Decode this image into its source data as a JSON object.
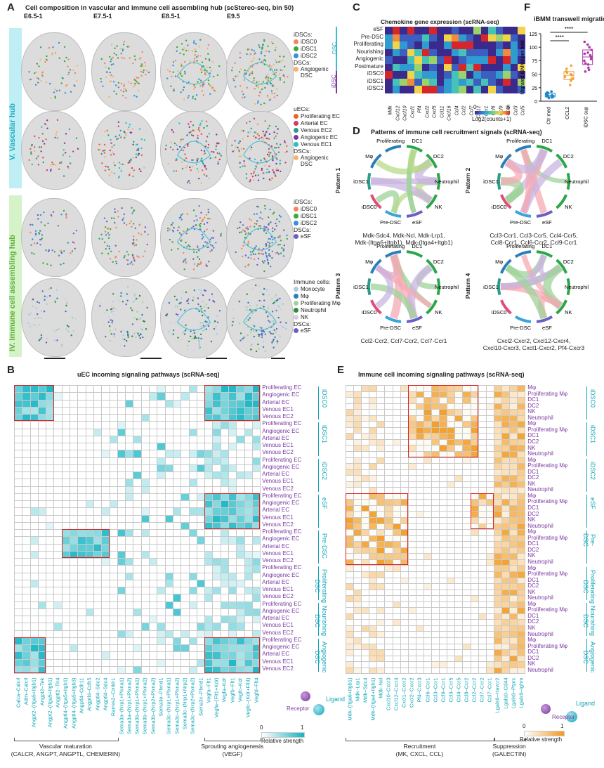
{
  "panelA": {
    "letter": "A",
    "title": "Cell composition in vascular and immune cell assembling hub (scStereo-seq, bin 50)",
    "stages": [
      "E6.5-1",
      "E7.5-1",
      "E8.5-1",
      "E9.5"
    ],
    "stage_colors": [
      "#e4573a",
      "#f08a78",
      "#3dbcd4",
      "#3db3d0"
    ],
    "hub_vascular": "V. Vascular hub",
    "hub_immune": "IV. Immune cell assembling hub",
    "legends": [
      {
        "head": "iDSCs:",
        "items": [
          {
            "label": "iDSC0",
            "color": "#f4845f"
          },
          {
            "label": "iDSC1",
            "color": "#3aaa35"
          },
          {
            "label": "iDSC2",
            "color": "#3a8fd8"
          }
        ],
        "head2": "DSCs:",
        "items2": [
          {
            "label": "Angiogenic\nDSC",
            "color": "#f7b26a"
          }
        ]
      },
      {
        "head": "uECs:",
        "items": [
          {
            "label": "Proliferating EC",
            "color": "#e8652a"
          },
          {
            "label": "Arterial EC",
            "color": "#d63a6b"
          },
          {
            "label": "Venous EC2",
            "color": "#2b9c8a"
          },
          {
            "label": "Angiogenic EC",
            "color": "#7b3aa0"
          },
          {
            "label": "Venous EC1",
            "color": "#28c0c8"
          }
        ],
        "head2": "DSCs:",
        "items2": [
          {
            "label": "Angiogenic\nDSC",
            "color": "#f7b26a"
          }
        ]
      },
      {
        "head": "iDSCs:",
        "items": [
          {
            "label": "iDSC0",
            "color": "#f4845f"
          },
          {
            "label": "iDSC1",
            "color": "#3aaa35"
          },
          {
            "label": "iDSC2",
            "color": "#3a8fd8"
          }
        ],
        "head2": "DSCs:",
        "items2": [
          {
            "label": "eSF",
            "color": "#6b5fc7"
          }
        ]
      },
      {
        "head": "Immune cells:",
        "items": [
          {
            "label": "Monocyte",
            "color": "#a8cbe8"
          },
          {
            "label": "Mφ",
            "color": "#2b7fb8"
          },
          {
            "label": "Proliferating Mφ",
            "color": "#9fd39a"
          },
          {
            "label": "Neutrophil",
            "color": "#2e8b3a"
          },
          {
            "label": "NK",
            "color": "#d8c9e6"
          }
        ],
        "head2": "DSCs:",
        "items2": [
          {
            "label": "eSF",
            "color": "#6b5fc7"
          }
        ]
      }
    ]
  },
  "panelB": {
    "letter": "B",
    "title": "uEC incoming signaling pathways (scRNA-seq)",
    "row_types": [
      "Proliferating EC",
      "Angiogenic EC",
      "Arterial EC",
      "Venous EC1",
      "Venous EC2"
    ],
    "groups": [
      "iDSC0",
      "iDSC1",
      "iDSC2",
      "eSF",
      "Pre-DSC",
      "Proliferating\nDSC",
      "Nourishing\nDSC",
      "Angiogenic\nDSC"
    ],
    "columns": [
      "Calca–Calcrl",
      "Adm–Calcrl",
      "Angpt2–(Itga5+Itgb1)",
      "Angpt2–Tek",
      "Angpt2–(Itga5+Itgb1)",
      "Angptl2–Tlr4",
      "Angptl4–(Itga5+Itgb1)",
      "Angptl4–(Itga5+Itgb3)",
      "Angptl4–Cdh11",
      "Angptl4–Cdh5",
      "Angptl4–Sdc2",
      "Angptl4–Sdc4",
      "Rarres2–Cmklr1",
      "Sema3a–(Nrp1+Plxna1)",
      "Sema3a–(Nrp1+Plxna2)",
      "Sema3b–(Nrp1+Plxna1)",
      "Sema3b–(Nrp1+Plxna2)",
      "Sema3b–(Nrp2+Plxna2)",
      "Sema3e–Plxnd1",
      "Sema3c–(Nrp1+Plxna1)",
      "Sema3c–(Nrp1+Plxna2)",
      "Sema3c–(Nrp1+Nrp2)",
      "Sema3c–(Nrp2+Plxna2)",
      "Sema3c–Plxnd1",
      "Vegfa–Flt1",
      "Vegfa–(Flt1+Kdr)",
      "Vegfa–Kdr",
      "Vegfb–Flt1",
      "Vegfc–Kdr",
      "Vegfc–(Kdr+Flt4)",
      "Vegfd–Flt4"
    ],
    "footer_left": "Vascular maturation",
    "footer_left_sub": "(CALCR, ANGPT, ANGPTL, CHEMERIN)",
    "footer_right": "Sprouting angiogenesis",
    "footer_right_sub": "(VEGF)",
    "receptor": "Receptor",
    "ligand": "Ligand",
    "scale_min": "0",
    "scale_max": "1",
    "scale_label": "Relative strength",
    "color": "#12b5c4"
  },
  "panelC": {
    "letter": "C",
    "title": "Chemokine gene expression (scRNA-seq)",
    "rows": [
      "eSF",
      "Pre-DSC",
      "Proliferating",
      "Nourishing",
      "Angiogenic",
      "Postmature",
      "iDSC0",
      "iDSC1",
      "iDSC2"
    ],
    "group_dsc": "DSC",
    "group_idsc": "iDSC",
    "genes": [
      "Mdk",
      "Cxcl12",
      "Cxcl10",
      "Cxcl1",
      "Pf4",
      "Cxcl2",
      "Cxcl5",
      "Ccl11",
      "Cxcl16",
      "Ccl4",
      "Ccl2",
      "Ccl7",
      "Ccl12",
      "Ccr1",
      "Ccl6",
      "Ccl9",
      "Ccl8",
      "Ccl3",
      "Ccl5"
    ],
    "scale_min": "0",
    "scale_max": "5",
    "scale_label": "Log2(counts+1)"
  },
  "panelD": {
    "letter": "D",
    "title": "Patterns of immune cell recruitment signals (scRNA-seq)",
    "nodes": [
      "DC1",
      "DC2",
      "Neutrophil",
      "NK",
      "eSF",
      "Pre-DSC",
      "iDSC0",
      "iDSC1",
      "Mφ",
      "Proliferating\nMφ"
    ],
    "patterns": [
      {
        "name": "Pattern 1",
        "caption": "Mdk-Sdc4,  Mdk-Ncl,  Mdk-Lrp1,\nMdk-(Itga6+Itgb1),  Mdk-(Itga4+Itgb1)"
      },
      {
        "name": "Pattern 2",
        "caption": "Ccl3-Ccr1, Ccl3-Ccr5, Ccl4-Ccr5,\nCcl8-Ccr1, Ccl6-Ccr2, Ccl9-Ccr1"
      },
      {
        "name": "Pattern 3",
        "caption": "Ccl2-Ccr2, Ccl7-Ccr2, Ccl7-Ccr1"
      },
      {
        "name": "Pattern 4",
        "caption": "Cxcl2-Cxcr2, Cxcl12-Cxcr4,\nCxcl10-Cxcr3, Cxcl1-Cxcr2, Pf4-Cxcr3"
      }
    ]
  },
  "panelE": {
    "letter": "E",
    "title": "Immune cell incoming signaling pathways (scRNA-seq)",
    "row_types": [
      "Mφ",
      "Proliferating Mφ",
      "DC1",
      "DC2",
      "NK",
      "Neutrophil"
    ],
    "groups": [
      "iDSC0",
      "iDSC1",
      "iDSC2",
      "eSF",
      "Pre-DSC",
      "Proliferating\nDSC",
      "Nourishing\nDSC",
      "Angiogenic\nDSC"
    ],
    "columns": [
      "Mdk–(Itga6+Itgb1)",
      "Mdk–Lrp1",
      "Mdk–Sdc4",
      "Mdk–(Itga4+Itgb1)",
      "Mdk–Ncl",
      "Cxcl10–Cxcr3",
      "Cxcl12–Cxcr4",
      "Cxcl1–Cxcr2",
      "Cxcl2–Cxcr2",
      "Pf4–Cxcr3",
      "Ccl6–Ccr1",
      "Ccl3–Ccr1",
      "Ccl9–Ccr1",
      "Ccl3–Ccr5",
      "Ccl4–Ccr5",
      "Ccl8–Ccr2",
      "Ccl2–Ccr2",
      "Ccl7–Ccr2",
      "Ccl7–Ccr1",
      "Lgals9–Havcr2",
      "Lgals9–Cd44",
      "Lgals9–Ptprc",
      "Lgals9–Ighm"
    ],
    "footer_left": "Recruitment",
    "footer_left_sub": "(MK, CXCL, CCL)",
    "footer_right": "Suppression",
    "footer_right_sub": "(GALECTIN)",
    "receptor": "Receptor",
    "ligand": "Ligand",
    "scale_min": "0",
    "scale_max": "1",
    "scale_label": "Relative strength",
    "color": "#f29a1e"
  },
  "panelF": {
    "letter": "F",
    "title": "iBMM transwell migration",
    "ylabel": "Migrated iBMMs per field",
    "sig1": "****",
    "sig2": "****",
    "chart_data": {
      "type": "scatter",
      "categories": [
        "Ctr med",
        "CCL2",
        "iDSC sup"
      ],
      "ylim": [
        0,
        125
      ],
      "yticks": [
        0,
        25,
        50,
        75,
        100,
        125
      ],
      "colors": [
        "#1a86c8",
        "#f2a33a",
        "#b03aa8"
      ],
      "series": [
        {
          "values": [
            6,
            10,
            14,
            8,
            12,
            18,
            9,
            15,
            11,
            7,
            16
          ]
        },
        {
          "values": [
            30,
            42,
            55,
            48,
            60,
            38,
            50,
            45,
            53,
            40,
            66
          ]
        },
        {
          "values": [
            55,
            70,
            85,
            95,
            100,
            62,
            78,
            90,
            68,
            105,
            110,
            75,
            88,
            82,
            58
          ]
        }
      ]
    }
  }
}
